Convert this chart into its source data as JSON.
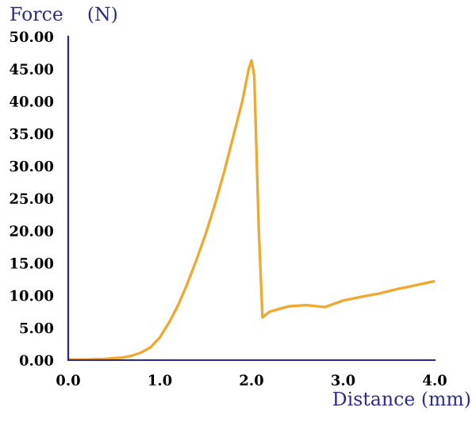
{
  "chart_data": {
    "type": "line",
    "xlabel": "Distance (mm)",
    "ylabel": "Force    (N)",
    "xlim": [
      0,
      4.0
    ],
    "ylim": [
      0,
      50
    ],
    "grid": false,
    "xticks": [
      {
        "value": 0,
        "label": "0.0"
      },
      {
        "value": 1,
        "label": "1.0"
      },
      {
        "value": 2,
        "label": "2.0"
      },
      {
        "value": 3,
        "label": "3.0"
      },
      {
        "value": 4,
        "label": "4.0"
      }
    ],
    "yticks": [
      {
        "value": 0,
        "label": "0.00"
      },
      {
        "value": 5,
        "label": "5.00"
      },
      {
        "value": 10,
        "label": "10.00"
      },
      {
        "value": 15,
        "label": "15.00"
      },
      {
        "value": 20,
        "label": "20.00"
      },
      {
        "value": 25,
        "label": "25.00"
      },
      {
        "value": 30,
        "label": "30.00"
      },
      {
        "value": 35,
        "label": "35.00"
      },
      {
        "value": 40,
        "label": "40.00"
      },
      {
        "value": 45,
        "label": "45.00"
      },
      {
        "value": 50,
        "label": "50.00"
      }
    ],
    "x": [
      0,
      0.2,
      0.4,
      0.6,
      0.7,
      0.8,
      0.9,
      1.0,
      1.1,
      1.2,
      1.3,
      1.4,
      1.5,
      1.6,
      1.7,
      1.8,
      1.9,
      1.97,
      2.0,
      2.03,
      2.08,
      2.12,
      2.2,
      2.4,
      2.6,
      2.8,
      3.0,
      3.2,
      3.4,
      3.6,
      3.8,
      4.0
    ],
    "series": [
      {
        "color": "#f0a830",
        "values": [
          0.1,
          0.1,
          0.2,
          0.4,
          0.7,
          1.2,
          2.0,
          3.5,
          5.8,
          8.5,
          11.8,
          15.5,
          19.5,
          24,
          29,
          34.5,
          40,
          45,
          46.3,
          44,
          20,
          6.6,
          7.5,
          8.3,
          8.5,
          8.2,
          9.2,
          9.8,
          10.3,
          11.0,
          11.6,
          12.2
        ]
      }
    ]
  }
}
